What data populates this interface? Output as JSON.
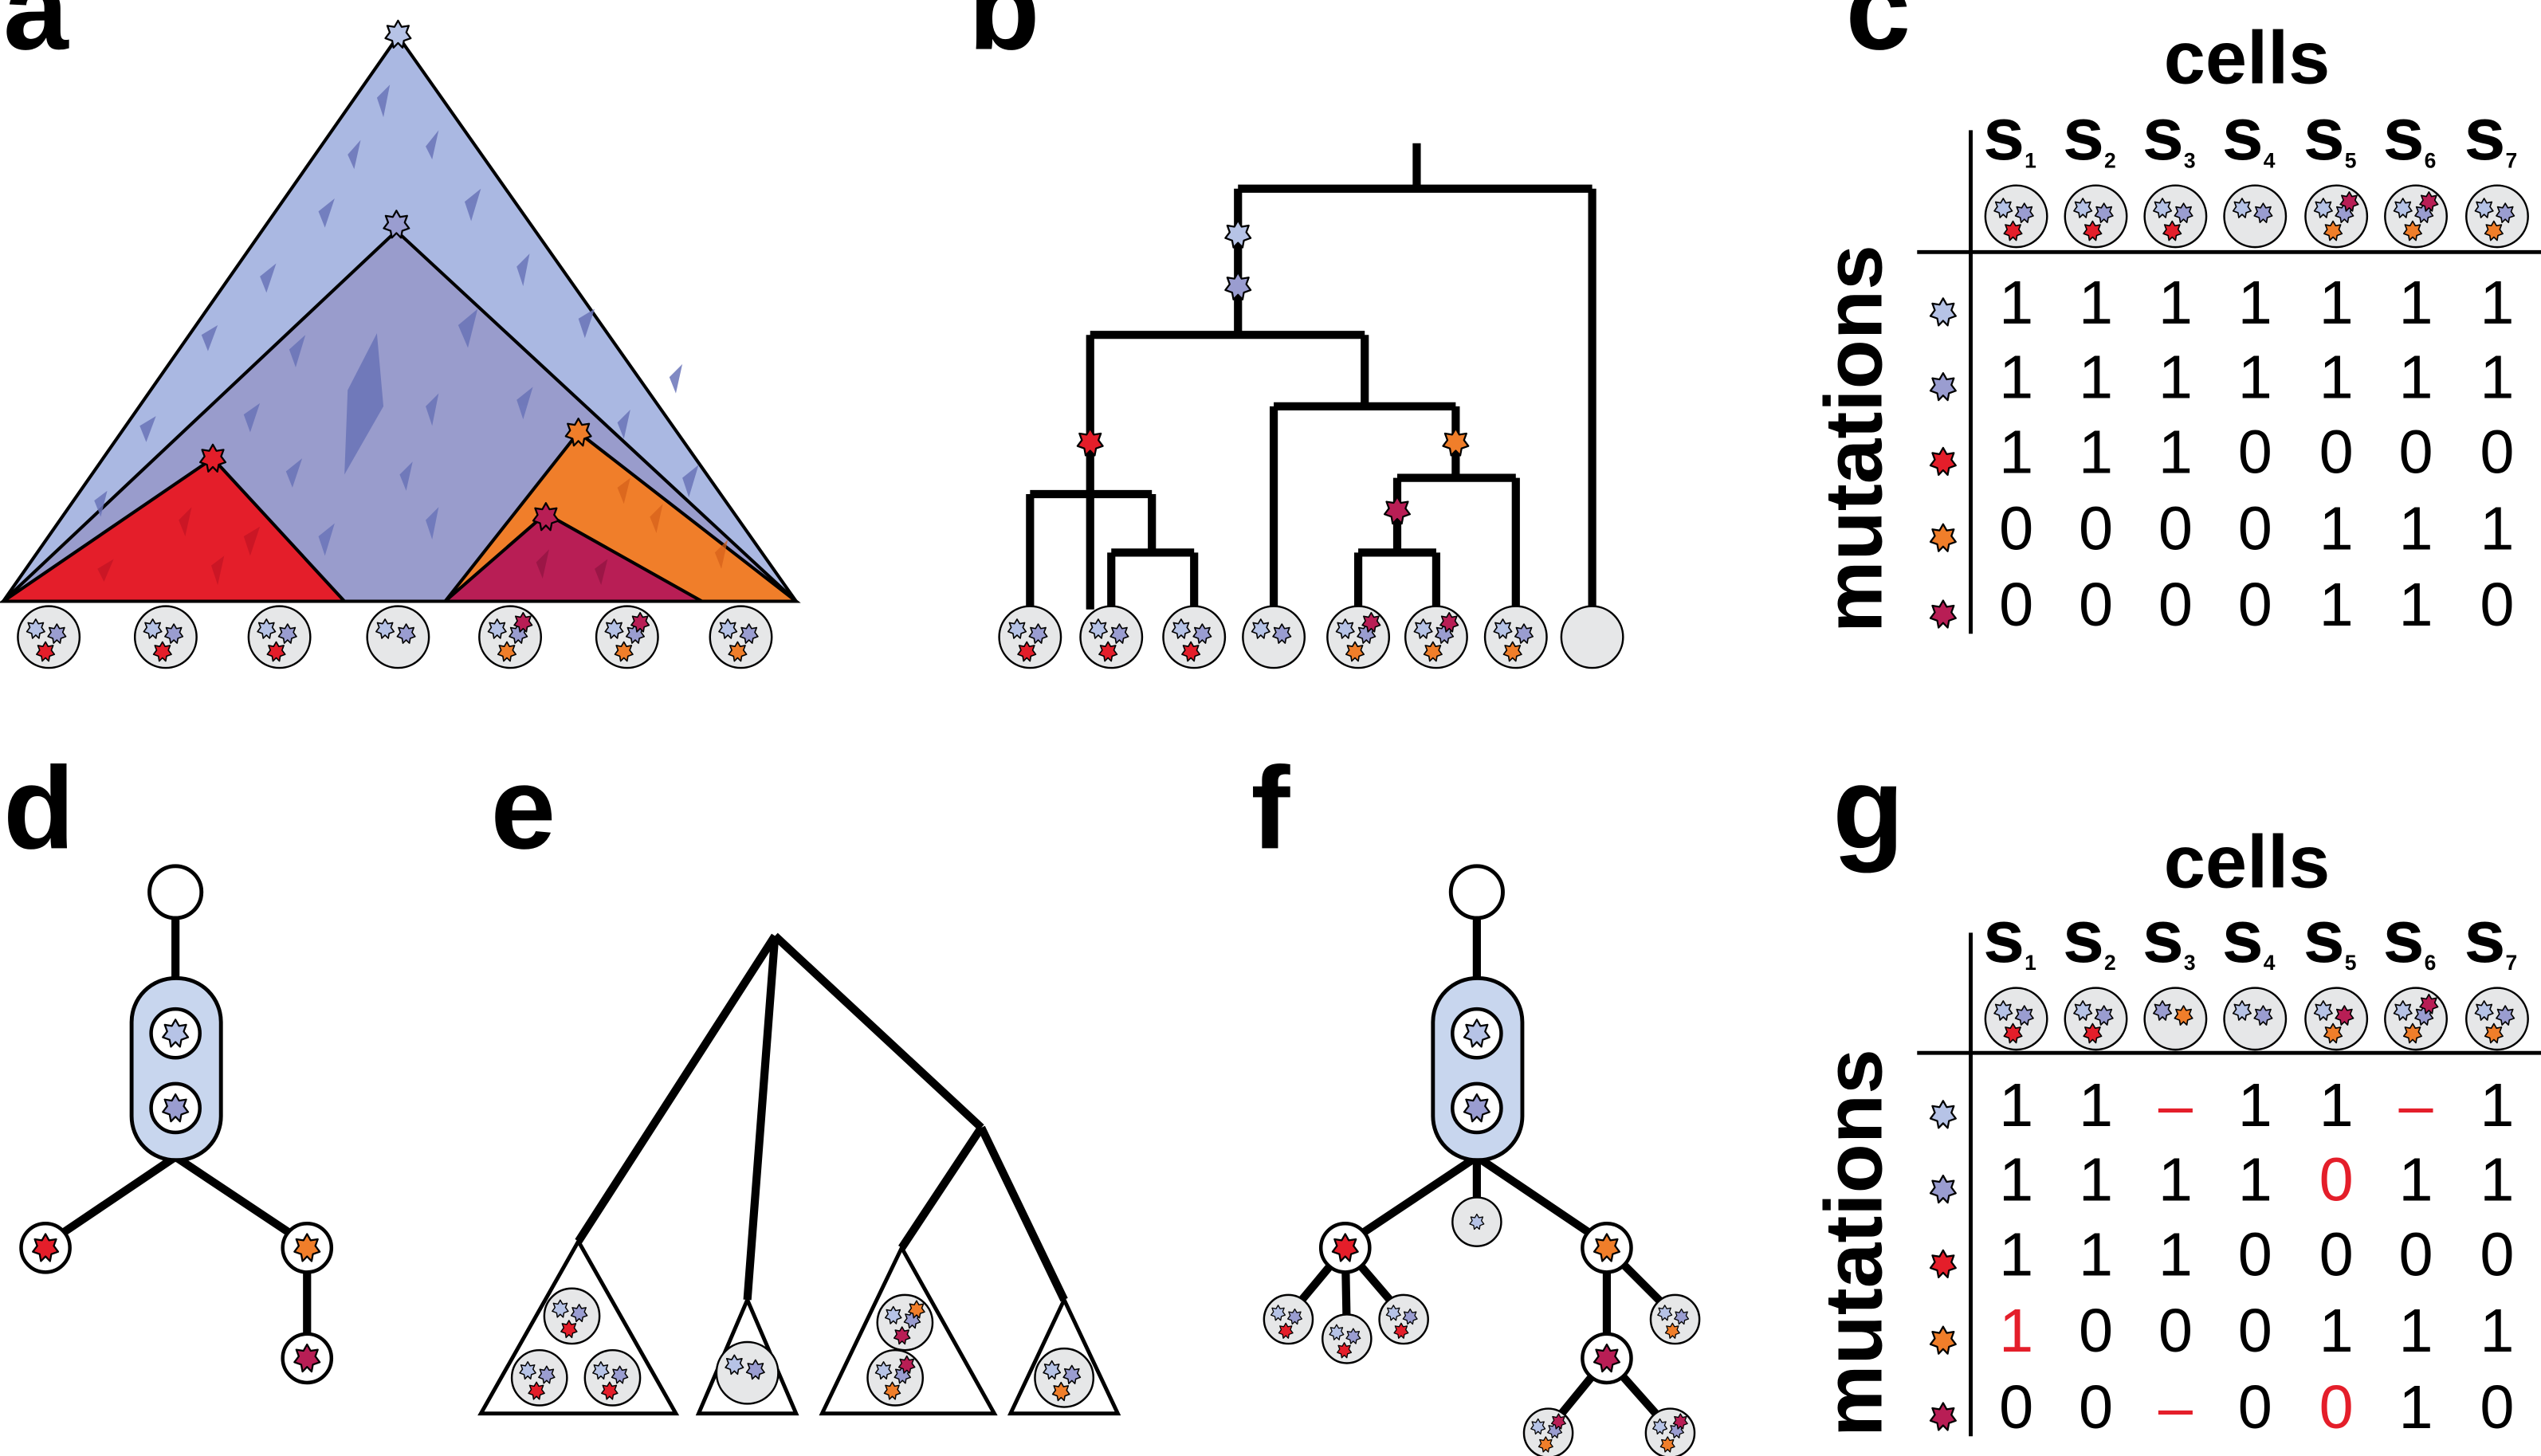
{
  "panel_labels": {
    "a": "a",
    "b": "b",
    "c": "c",
    "d": "d",
    "e": "e",
    "f": "f",
    "g": "g"
  },
  "colors": {
    "m1": "#b6c3e6",
    "m2": "#9a9dd0",
    "m3": "#e41e2a",
    "m4": "#f07e2a",
    "m5": "#b81e55",
    "tri_outer": "#aab8e2",
    "tri_inner": "#999ccc",
    "shard": "#6a74b8",
    "cell_fill": "#e6e7e8",
    "pill": "#c8d6ee",
    "error": "#e41e2a",
    "line": "#000000"
  },
  "icons": {
    "mutation": "star-icon",
    "cell": "cell-icon"
  },
  "matrix_c": {
    "header": "cells",
    "side": "mutations",
    "samples": [
      {
        "s": "s",
        "n": "1"
      },
      {
        "s": "s",
        "n": "2"
      },
      {
        "s": "s",
        "n": "3"
      },
      {
        "s": "s",
        "n": "4"
      },
      {
        "s": "s",
        "n": "5"
      },
      {
        "s": "s",
        "n": "6"
      },
      {
        "s": "s",
        "n": "7"
      }
    ],
    "rows": [
      [
        "1",
        "1",
        "1",
        "1",
        "1",
        "1",
        "1"
      ],
      [
        "1",
        "1",
        "1",
        "1",
        "1",
        "1",
        "1"
      ],
      [
        "1",
        "1",
        "1",
        "0",
        "0",
        "0",
        "0"
      ],
      [
        "0",
        "0",
        "0",
        "0",
        "1",
        "1",
        "1"
      ],
      [
        "0",
        "0",
        "0",
        "0",
        "1",
        "1",
        "0"
      ]
    ]
  },
  "matrix_g": {
    "header": "cells",
    "side": "mutations",
    "samples": [
      {
        "s": "s",
        "n": "1"
      },
      {
        "s": "s",
        "n": "2"
      },
      {
        "s": "s",
        "n": "3"
      },
      {
        "s": "s",
        "n": "4"
      },
      {
        "s": "s",
        "n": "5"
      },
      {
        "s": "s",
        "n": "6"
      },
      {
        "s": "s",
        "n": "7"
      }
    ],
    "rows": [
      [
        "1",
        "1",
        "–",
        "1",
        "1",
        "–",
        "1"
      ],
      [
        "1",
        "1",
        "1",
        "1",
        "0",
        "1",
        "1"
      ],
      [
        "1",
        "1",
        "1",
        "0",
        "0",
        "0",
        "0"
      ],
      [
        "1",
        "0",
        "0",
        "0",
        "1",
        "1",
        "1"
      ],
      [
        "0",
        "0",
        "–",
        "0",
        "0",
        "1",
        "0"
      ]
    ],
    "errors": [
      [
        0,
        2
      ],
      [
        0,
        5
      ],
      [
        1,
        4
      ],
      [
        3,
        0
      ],
      [
        4,
        2
      ],
      [
        4,
        4
      ]
    ]
  }
}
